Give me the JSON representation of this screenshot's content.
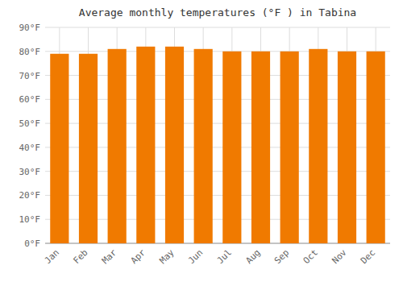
{
  "chart_data": {
    "type": "bar",
    "title": "Average monthly temperatures (°F ) in Tabina",
    "categories": [
      "Jan",
      "Feb",
      "Mar",
      "Apr",
      "May",
      "Jun",
      "Jul",
      "Aug",
      "Sep",
      "Oct",
      "Nov",
      "Dec"
    ],
    "values": [
      79,
      79,
      81,
      82,
      82,
      81,
      80,
      80,
      80,
      81,
      80,
      80
    ],
    "color": "#F07A00",
    "ylim": [
      0,
      90
    ],
    "yticks": [
      {
        "value": 0,
        "label": "0°F"
      },
      {
        "value": 10,
        "label": "10°F"
      },
      {
        "value": 20,
        "label": "20°F"
      },
      {
        "value": 30,
        "label": "30°F"
      },
      {
        "value": 40,
        "label": "40°F"
      },
      {
        "value": 50,
        "label": "50°F"
      },
      {
        "value": 60,
        "label": "60°F"
      },
      {
        "value": 70,
        "label": "70°F"
      },
      {
        "value": 80,
        "label": "80°F"
      },
      {
        "value": 90,
        "label": "90°F"
      }
    ],
    "grid": true
  }
}
